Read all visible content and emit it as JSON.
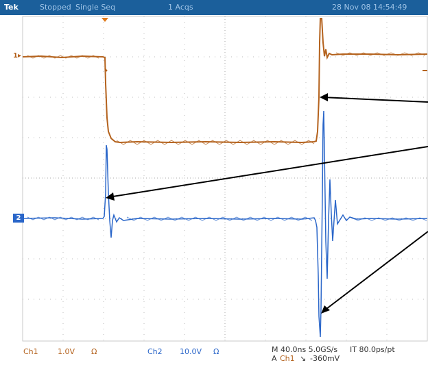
{
  "status_bar": {
    "brand": "Tek",
    "acq_state": "Stopped",
    "mode": "Single Seq",
    "acq_count": "1 Acqs",
    "datetime": "28 Nov 08 14:54:49"
  },
  "markers": {
    "ch1": "1",
    "ch2": "2"
  },
  "readouts": {
    "ch1_label": "Ch1",
    "ch1_scale": "1.0V",
    "ch1_coupling": "Ω",
    "ch2_label": "Ch2",
    "ch2_scale": "10.0V",
    "ch2_coupling": "Ω",
    "horizontal": "M 40.0ns 5.0GS/s",
    "interval": "IT 80.0ps/pt",
    "trigger_prefix": "A",
    "trigger_source": "Ch1",
    "trigger_slope": "↘",
    "trigger_level": "-360mV"
  },
  "colors": {
    "ch1": "#b4621d",
    "ch2": "#2a66c9",
    "status_bar": "#1b5f9b"
  }
}
